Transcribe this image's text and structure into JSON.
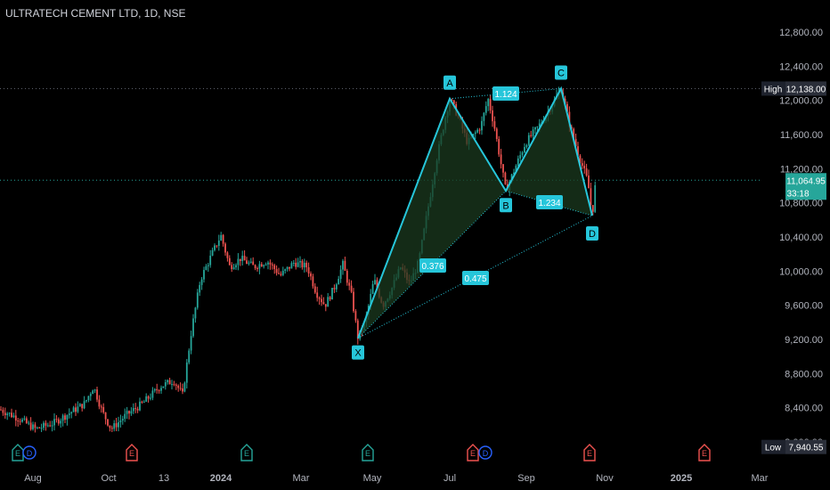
{
  "header": {
    "symbol_title": "ULTRATECH CEMENT LTD, 1D, NSE"
  },
  "price_axis": {
    "ticks": [
      "12,800.00",
      "12,400.00",
      "12,000.00",
      "11,600.00",
      "11,200.00",
      "10,800.00",
      "10,400.00",
      "10,000.00",
      "9,600.00",
      "9,200.00",
      "8,800.00",
      "8,400.00",
      "8,000.00"
    ],
    "tick_values": [
      12800,
      12400,
      12000,
      11600,
      11200,
      10800,
      10400,
      10000,
      9600,
      9200,
      8800,
      8400,
      8000
    ],
    "high_label": "High",
    "high_value": "12,138.00",
    "low_label": "Low",
    "low_value": "7,940.55",
    "last_price": "11,064.95",
    "countdown": "33:18"
  },
  "time_axis": {
    "labels": [
      "Aug",
      "Oct",
      "13",
      "2024",
      "Mar",
      "May",
      "Jul",
      "Sep",
      "Nov",
      "2025",
      "Mar"
    ],
    "label_x": [
      37,
      122,
      184,
      248,
      338,
      418,
      505,
      591,
      679,
      765,
      853
    ]
  },
  "colors": {
    "background": "#000000",
    "pattern_line": "#26c6da",
    "pattern_fill": "#1b3a1f",
    "up_candle": "#26a69a",
    "down_candle": "#ef5350",
    "label_bg": "#26c6da",
    "dotted_line": "#5d606b"
  },
  "event_markers": [
    {
      "type": "E",
      "color": "#26a69a",
      "x": 20
    },
    {
      "type": "D",
      "color": "#2962ff",
      "x": 33
    },
    {
      "type": "E",
      "color": "#ef5350",
      "x": 148
    },
    {
      "type": "E",
      "color": "#26a69a",
      "x": 277
    },
    {
      "type": "E",
      "color": "#26a69a",
      "x": 413
    },
    {
      "type": "E",
      "color": "#ef5350",
      "x": 531
    },
    {
      "type": "D",
      "color": "#2962ff",
      "x": 545
    },
    {
      "type": "E",
      "color": "#ef5350",
      "x": 662
    },
    {
      "type": "E",
      "color": "#ef5350",
      "x": 791
    }
  ],
  "chart_data": {
    "type": "candlestick",
    "title": "ULTRATECH CEMENT LTD, 1D, NSE",
    "ylim": [
      7900,
      13000
    ],
    "xlim_labels": [
      "Aug",
      "Mar"
    ],
    "pattern": {
      "name": "XABCD",
      "points": [
        {
          "label": "X",
          "price": 9215
        },
        {
          "label": "A",
          "price": 12020
        },
        {
          "label": "B",
          "price": 10940
        },
        {
          "label": "C",
          "price": 12138
        },
        {
          "label": "D",
          "price": 10650
        }
      ],
      "ratios": [
        {
          "text": "0.376"
        },
        {
          "text": "1.124"
        },
        {
          "text": "0.475"
        },
        {
          "text": "1.234"
        }
      ]
    },
    "price_anchors": [
      [
        0,
        8380
      ],
      [
        20,
        8280
      ],
      [
        40,
        8150
      ],
      [
        60,
        8220
      ],
      [
        80,
        8350
      ],
      [
        95,
        8450
      ],
      [
        105,
        8650
      ],
      [
        115,
        8350
      ],
      [
        125,
        8150
      ],
      [
        140,
        8300
      ],
      [
        160,
        8450
      ],
      [
        180,
        8650
      ],
      [
        195,
        8720
      ],
      [
        205,
        8550
      ],
      [
        215,
        9300
      ],
      [
        225,
        9900
      ],
      [
        238,
        10200
      ],
      [
        248,
        10420
      ],
      [
        258,
        10050
      ],
      [
        270,
        10150
      ],
      [
        285,
        10050
      ],
      [
        300,
        10120
      ],
      [
        315,
        9950
      ],
      [
        330,
        10100
      ],
      [
        345,
        10050
      ],
      [
        355,
        9750
      ],
      [
        365,
        9600
      ],
      [
        375,
        9800
      ],
      [
        385,
        10080
      ],
      [
        395,
        9700
      ],
      [
        402,
        9215
      ],
      [
        410,
        9400
      ],
      [
        420,
        9900
      ],
      [
        430,
        9600
      ],
      [
        440,
        9800
      ],
      [
        450,
        10050
      ],
      [
        460,
        9850
      ],
      [
        470,
        10100
      ],
      [
        480,
        10700
      ],
      [
        490,
        11300
      ],
      [
        500,
        11800
      ],
      [
        505,
        12020
      ],
      [
        515,
        11800
      ],
      [
        525,
        11500
      ],
      [
        540,
        11700
      ],
      [
        548,
        12020
      ],
      [
        555,
        11700
      ],
      [
        568,
        10940
      ],
      [
        578,
        11200
      ],
      [
        590,
        11500
      ],
      [
        605,
        11700
      ],
      [
        620,
        11950
      ],
      [
        630,
        12138
      ],
      [
        640,
        11700
      ],
      [
        650,
        11350
      ],
      [
        660,
        11050
      ],
      [
        665,
        10650
      ],
      [
        669,
        11064
      ]
    ]
  }
}
